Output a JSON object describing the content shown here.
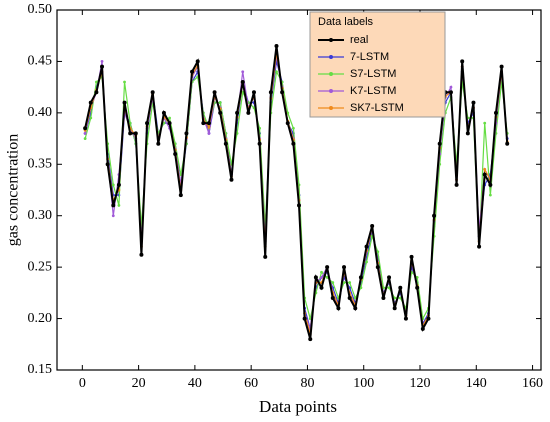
{
  "chart_data": {
    "type": "line",
    "xlabel": "Data points",
    "ylabel": "gas concentration",
    "legend_title": "Data labels",
    "xlim": [
      -9,
      163
    ],
    "ylim": [
      0.15,
      0.5
    ],
    "xticks": [
      0,
      20,
      40,
      60,
      80,
      100,
      120,
      140,
      160
    ],
    "yticks": [
      {
        "value": 0.15,
        "label": "0.15"
      },
      {
        "value": 0.2,
        "label": "0.20"
      },
      {
        "value": 0.25,
        "label": "0.25"
      },
      {
        "value": 0.3,
        "label": "0.30"
      },
      {
        "value": 0.35,
        "label": "0.35"
      },
      {
        "value": 0.4,
        "label": "0.40"
      },
      {
        "value": 0.45,
        "label": "0.45"
      },
      {
        "value": 0.5,
        "label": "0.50"
      }
    ],
    "legend": "upper-center",
    "x": [
      1,
      3,
      5,
      7,
      9,
      11,
      13,
      15,
      17,
      19,
      21,
      23,
      25,
      27,
      29,
      31,
      33,
      35,
      37,
      39,
      41,
      43,
      45,
      47,
      49,
      51,
      53,
      55,
      57,
      59,
      61,
      63,
      65,
      67,
      69,
      71,
      73,
      75,
      77,
      79,
      81,
      83,
      85,
      87,
      89,
      91,
      93,
      95,
      97,
      99,
      101,
      103,
      105,
      107,
      109,
      111,
      113,
      115,
      117,
      119,
      121,
      123,
      125,
      127,
      129,
      131,
      133,
      135,
      137,
      139,
      141,
      143,
      145,
      147,
      149,
      151
    ],
    "series": [
      {
        "name": "real",
        "color": "#000000",
        "values": [
          0.385,
          0.41,
          0.42,
          0.445,
          0.35,
          0.31,
          0.33,
          0.41,
          0.38,
          0.38,
          0.262,
          0.39,
          0.42,
          0.37,
          0.4,
          0.39,
          0.36,
          0.32,
          0.38,
          0.44,
          0.45,
          0.39,
          0.39,
          0.42,
          0.4,
          0.37,
          0.335,
          0.4,
          0.43,
          0.4,
          0.42,
          0.37,
          0.26,
          0.42,
          0.465,
          0.42,
          0.39,
          0.37,
          0.31,
          0.2,
          0.18,
          0.24,
          0.23,
          0.25,
          0.22,
          0.21,
          0.25,
          0.22,
          0.21,
          0.24,
          0.27,
          0.29,
          0.25,
          0.22,
          0.24,
          0.21,
          0.23,
          0.2,
          0.26,
          0.23,
          0.19,
          0.2,
          0.3,
          0.37,
          0.42,
          0.42,
          0.33,
          0.45,
          0.38,
          0.41,
          0.27,
          0.34,
          0.33,
          0.4,
          0.445,
          0.37
        ]
      },
      {
        "name": "7-LSTM",
        "color": "#3a3ad6",
        "values": [
          0.38,
          0.4,
          0.425,
          0.44,
          0.36,
          0.32,
          0.32,
          0.4,
          0.39,
          0.37,
          0.28,
          0.38,
          0.42,
          0.38,
          0.39,
          0.39,
          0.37,
          0.33,
          0.37,
          0.43,
          0.44,
          0.4,
          0.38,
          0.41,
          0.41,
          0.38,
          0.34,
          0.39,
          0.43,
          0.41,
          0.41,
          0.38,
          0.28,
          0.41,
          0.45,
          0.43,
          0.39,
          0.38,
          0.32,
          0.21,
          0.19,
          0.23,
          0.24,
          0.245,
          0.23,
          0.215,
          0.24,
          0.23,
          0.215,
          0.235,
          0.26,
          0.285,
          0.26,
          0.225,
          0.235,
          0.215,
          0.225,
          0.205,
          0.25,
          0.235,
          0.195,
          0.205,
          0.29,
          0.36,
          0.41,
          0.42,
          0.34,
          0.44,
          0.39,
          0.4,
          0.28,
          0.33,
          0.34,
          0.39,
          0.44,
          0.375
        ]
      },
      {
        "name": "S7-LSTM",
        "color": "#66dd44",
        "values": [
          0.375,
          0.395,
          0.43,
          0.435,
          0.37,
          0.33,
          0.31,
          0.43,
          0.39,
          0.37,
          0.29,
          0.37,
          0.41,
          0.38,
          0.39,
          0.395,
          0.37,
          0.34,
          0.37,
          0.43,
          0.435,
          0.4,
          0.385,
          0.41,
          0.41,
          0.38,
          0.35,
          0.38,
          0.42,
          0.41,
          0.405,
          0.385,
          0.29,
          0.4,
          0.44,
          0.43,
          0.4,
          0.385,
          0.33,
          0.22,
          0.2,
          0.225,
          0.245,
          0.24,
          0.235,
          0.22,
          0.235,
          0.235,
          0.22,
          0.23,
          0.255,
          0.28,
          0.265,
          0.23,
          0.23,
          0.22,
          0.22,
          0.21,
          0.245,
          0.24,
          0.2,
          0.21,
          0.28,
          0.35,
          0.4,
          0.415,
          0.35,
          0.43,
          0.395,
          0.395,
          0.27,
          0.39,
          0.32,
          0.38,
          0.43,
          0.38
        ]
      },
      {
        "name": "K7-LSTM",
        "color": "#a15ad8",
        "values": [
          0.38,
          0.405,
          0.42,
          0.45,
          0.355,
          0.3,
          0.34,
          0.4,
          0.385,
          0.375,
          0.275,
          0.385,
          0.415,
          0.375,
          0.395,
          0.385,
          0.365,
          0.33,
          0.375,
          0.435,
          0.445,
          0.395,
          0.38,
          0.415,
          0.405,
          0.375,
          0.34,
          0.395,
          0.44,
          0.405,
          0.415,
          0.375,
          0.275,
          0.415,
          0.455,
          0.425,
          0.39,
          0.375,
          0.315,
          0.205,
          0.19,
          0.235,
          0.24,
          0.25,
          0.225,
          0.21,
          0.245,
          0.225,
          0.21,
          0.24,
          0.265,
          0.29,
          0.255,
          0.22,
          0.24,
          0.21,
          0.23,
          0.2,
          0.255,
          0.23,
          0.19,
          0.2,
          0.295,
          0.36,
          0.415,
          0.425,
          0.335,
          0.445,
          0.385,
          0.405,
          0.285,
          0.345,
          0.335,
          0.39,
          0.44,
          0.37
        ]
      },
      {
        "name": "SK7-LSTM",
        "color": "#f08a1c",
        "values": [
          0.383,
          0.405,
          0.422,
          0.44,
          0.355,
          0.315,
          0.325,
          0.405,
          0.385,
          0.378,
          0.27,
          0.387,
          0.418,
          0.374,
          0.396,
          0.39,
          0.364,
          0.325,
          0.376,
          0.437,
          0.446,
          0.394,
          0.386,
          0.416,
          0.404,
          0.374,
          0.338,
          0.396,
          0.428,
          0.404,
          0.416,
          0.374,
          0.27,
          0.414,
          0.458,
          0.424,
          0.392,
          0.374,
          0.315,
          0.205,
          0.185,
          0.235,
          0.235,
          0.248,
          0.225,
          0.213,
          0.245,
          0.225,
          0.213,
          0.238,
          0.266,
          0.288,
          0.254,
          0.223,
          0.237,
          0.213,
          0.228,
          0.203,
          0.256,
          0.232,
          0.193,
          0.203,
          0.296,
          0.366,
          0.416,
          0.42,
          0.335,
          0.445,
          0.385,
          0.405,
          0.275,
          0.345,
          0.335,
          0.396,
          0.44,
          0.372
        ]
      }
    ]
  }
}
